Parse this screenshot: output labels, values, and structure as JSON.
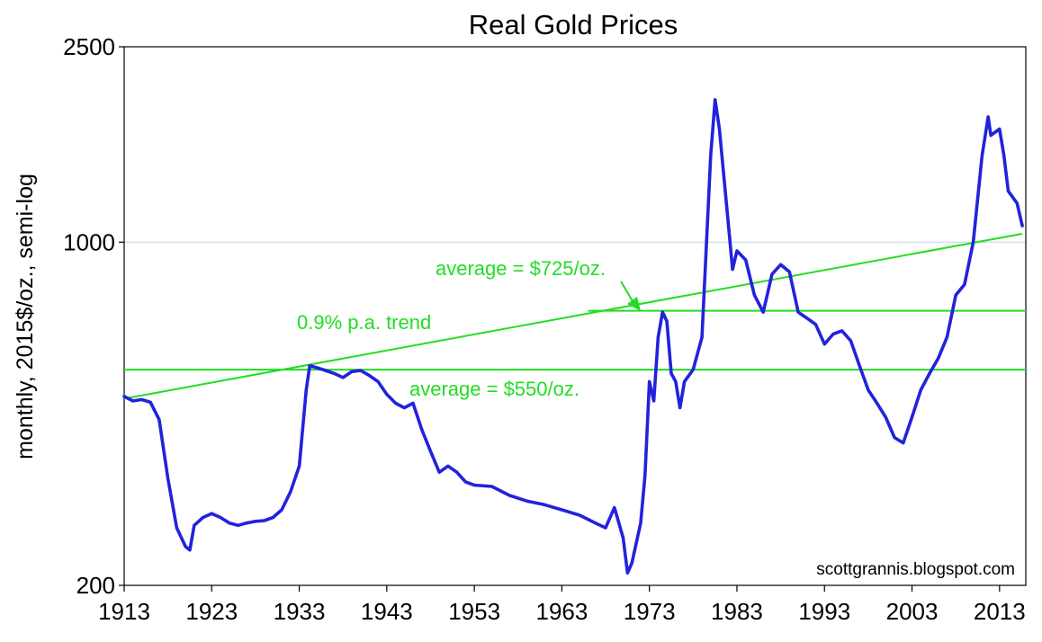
{
  "chart_data": {
    "type": "line",
    "title": "Real Gold Prices",
    "ylabel": "monthly, 2015$/oz., semi-log",
    "xlabel": "",
    "y_scale": "log",
    "ylim": [
      200,
      2500
    ],
    "xlim": [
      1913,
      2016
    ],
    "y_ticks": [
      {
        "value": 200,
        "label": "200"
      },
      {
        "value": 1000,
        "label": "1000"
      },
      {
        "value": 2500,
        "label": "2500"
      }
    ],
    "x_ticks": [
      {
        "value": 1913,
        "label": "1913"
      },
      {
        "value": 1923,
        "label": "1923"
      },
      {
        "value": 1933,
        "label": "1933"
      },
      {
        "value": 1943,
        "label": "1943"
      },
      {
        "value": 1953,
        "label": "1953"
      },
      {
        "value": 1963,
        "label": "1963"
      },
      {
        "value": 1973,
        "label": "1973"
      },
      {
        "value": 1983,
        "label": "1983"
      },
      {
        "value": 1993,
        "label": "1993"
      },
      {
        "value": 2003,
        "label": "2003"
      },
      {
        "value": 2013,
        "label": "2013"
      }
    ],
    "series": [
      {
        "color": "#2222dd",
        "x": [
          1913.0,
          1914.0,
          1915.0,
          1916.0,
          1917.0,
          1918.0,
          1919.0,
          1920.0,
          1920.5,
          1921.0,
          1922.0,
          1923.0,
          1924.0,
          1925.0,
          1926.0,
          1927.0,
          1928.0,
          1929.0,
          1930.0,
          1931.0,
          1932.0,
          1933.0,
          1933.8,
          1934.2,
          1935.0,
          1936.0,
          1937.0,
          1938.0,
          1939.0,
          1940.0,
          1941.0,
          1942.0,
          1943.0,
          1944.0,
          1945.0,
          1946.0,
          1947.0,
          1948.0,
          1949.0,
          1950.0,
          1951.0,
          1952.0,
          1953.0,
          1955.0,
          1957.0,
          1959.0,
          1961.0,
          1963.0,
          1965.0,
          1967.0,
          1968.0,
          1969.0,
          1970.0,
          1970.5,
          1971.0,
          1972.0,
          1972.5,
          1973.0,
          1973.5,
          1974.0,
          1974.5,
          1975.0,
          1975.5,
          1976.0,
          1976.5,
          1977.0,
          1978.0,
          1979.0,
          1980.0,
          1980.5,
          1981.0,
          1982.0,
          1982.5,
          1983.0,
          1984.0,
          1985.0,
          1986.0,
          1987.0,
          1988.0,
          1989.0,
          1990.0,
          1991.0,
          1992.0,
          1993.0,
          1994.0,
          1995.0,
          1996.0,
          1997.0,
          1998.0,
          1999.0,
          2000.0,
          2001.0,
          2002.0,
          2003.0,
          2004.0,
          2005.0,
          2006.0,
          2007.0,
          2008.0,
          2009.0,
          2010.0,
          2011.0,
          2011.7,
          2012.0,
          2013.0,
          2013.5,
          2014.0,
          2015.0,
          2015.6
        ],
        "values": [
          485,
          475,
          478,
          472,
          435,
          330,
          262,
          240,
          236,
          265,
          275,
          280,
          275,
          268,
          265,
          268,
          270,
          271,
          275,
          285,
          310,
          350,
          500,
          560,
          555,
          548,
          540,
          530,
          545,
          548,
          535,
          520,
          490,
          470,
          460,
          470,
          415,
          375,
          340,
          350,
          340,
          325,
          320,
          318,
          305,
          297,
          292,
          285,
          278,
          267,
          262,
          288,
          250,
          212,
          222,
          268,
          335,
          520,
          475,
          640,
          720,
          690,
          540,
          520,
          460,
          520,
          550,
          640,
          1500,
          1950,
          1700,
          1100,
          880,
          960,
          920,
          780,
          720,
          860,
          900,
          870,
          720,
          700,
          680,
          620,
          650,
          660,
          630,
          560,
          500,
          470,
          440,
          400,
          390,
          440,
          500,
          540,
          580,
          640,
          780,
          820,
          1000,
          1500,
          1800,
          1650,
          1700,
          1500,
          1270,
          1200,
          1080
        ]
      }
    ],
    "annotations": {
      "trend_label": "0.9% p.a. trend",
      "avg_long_label": "average = $550/oz.",
      "avg_recent_label": "average = $725/oz.",
      "color": "#22dd22"
    },
    "trend_line": {
      "x": [
        1913,
        2015.6
      ],
      "y": [
        480,
        1040
      ]
    },
    "average_long": {
      "value": 550,
      "x_start": 1913
    },
    "average_recent": {
      "value": 725,
      "x_start": 1966
    },
    "credit": "scottgrannis.blogspot.com",
    "grid": "horizontal at 1000"
  }
}
